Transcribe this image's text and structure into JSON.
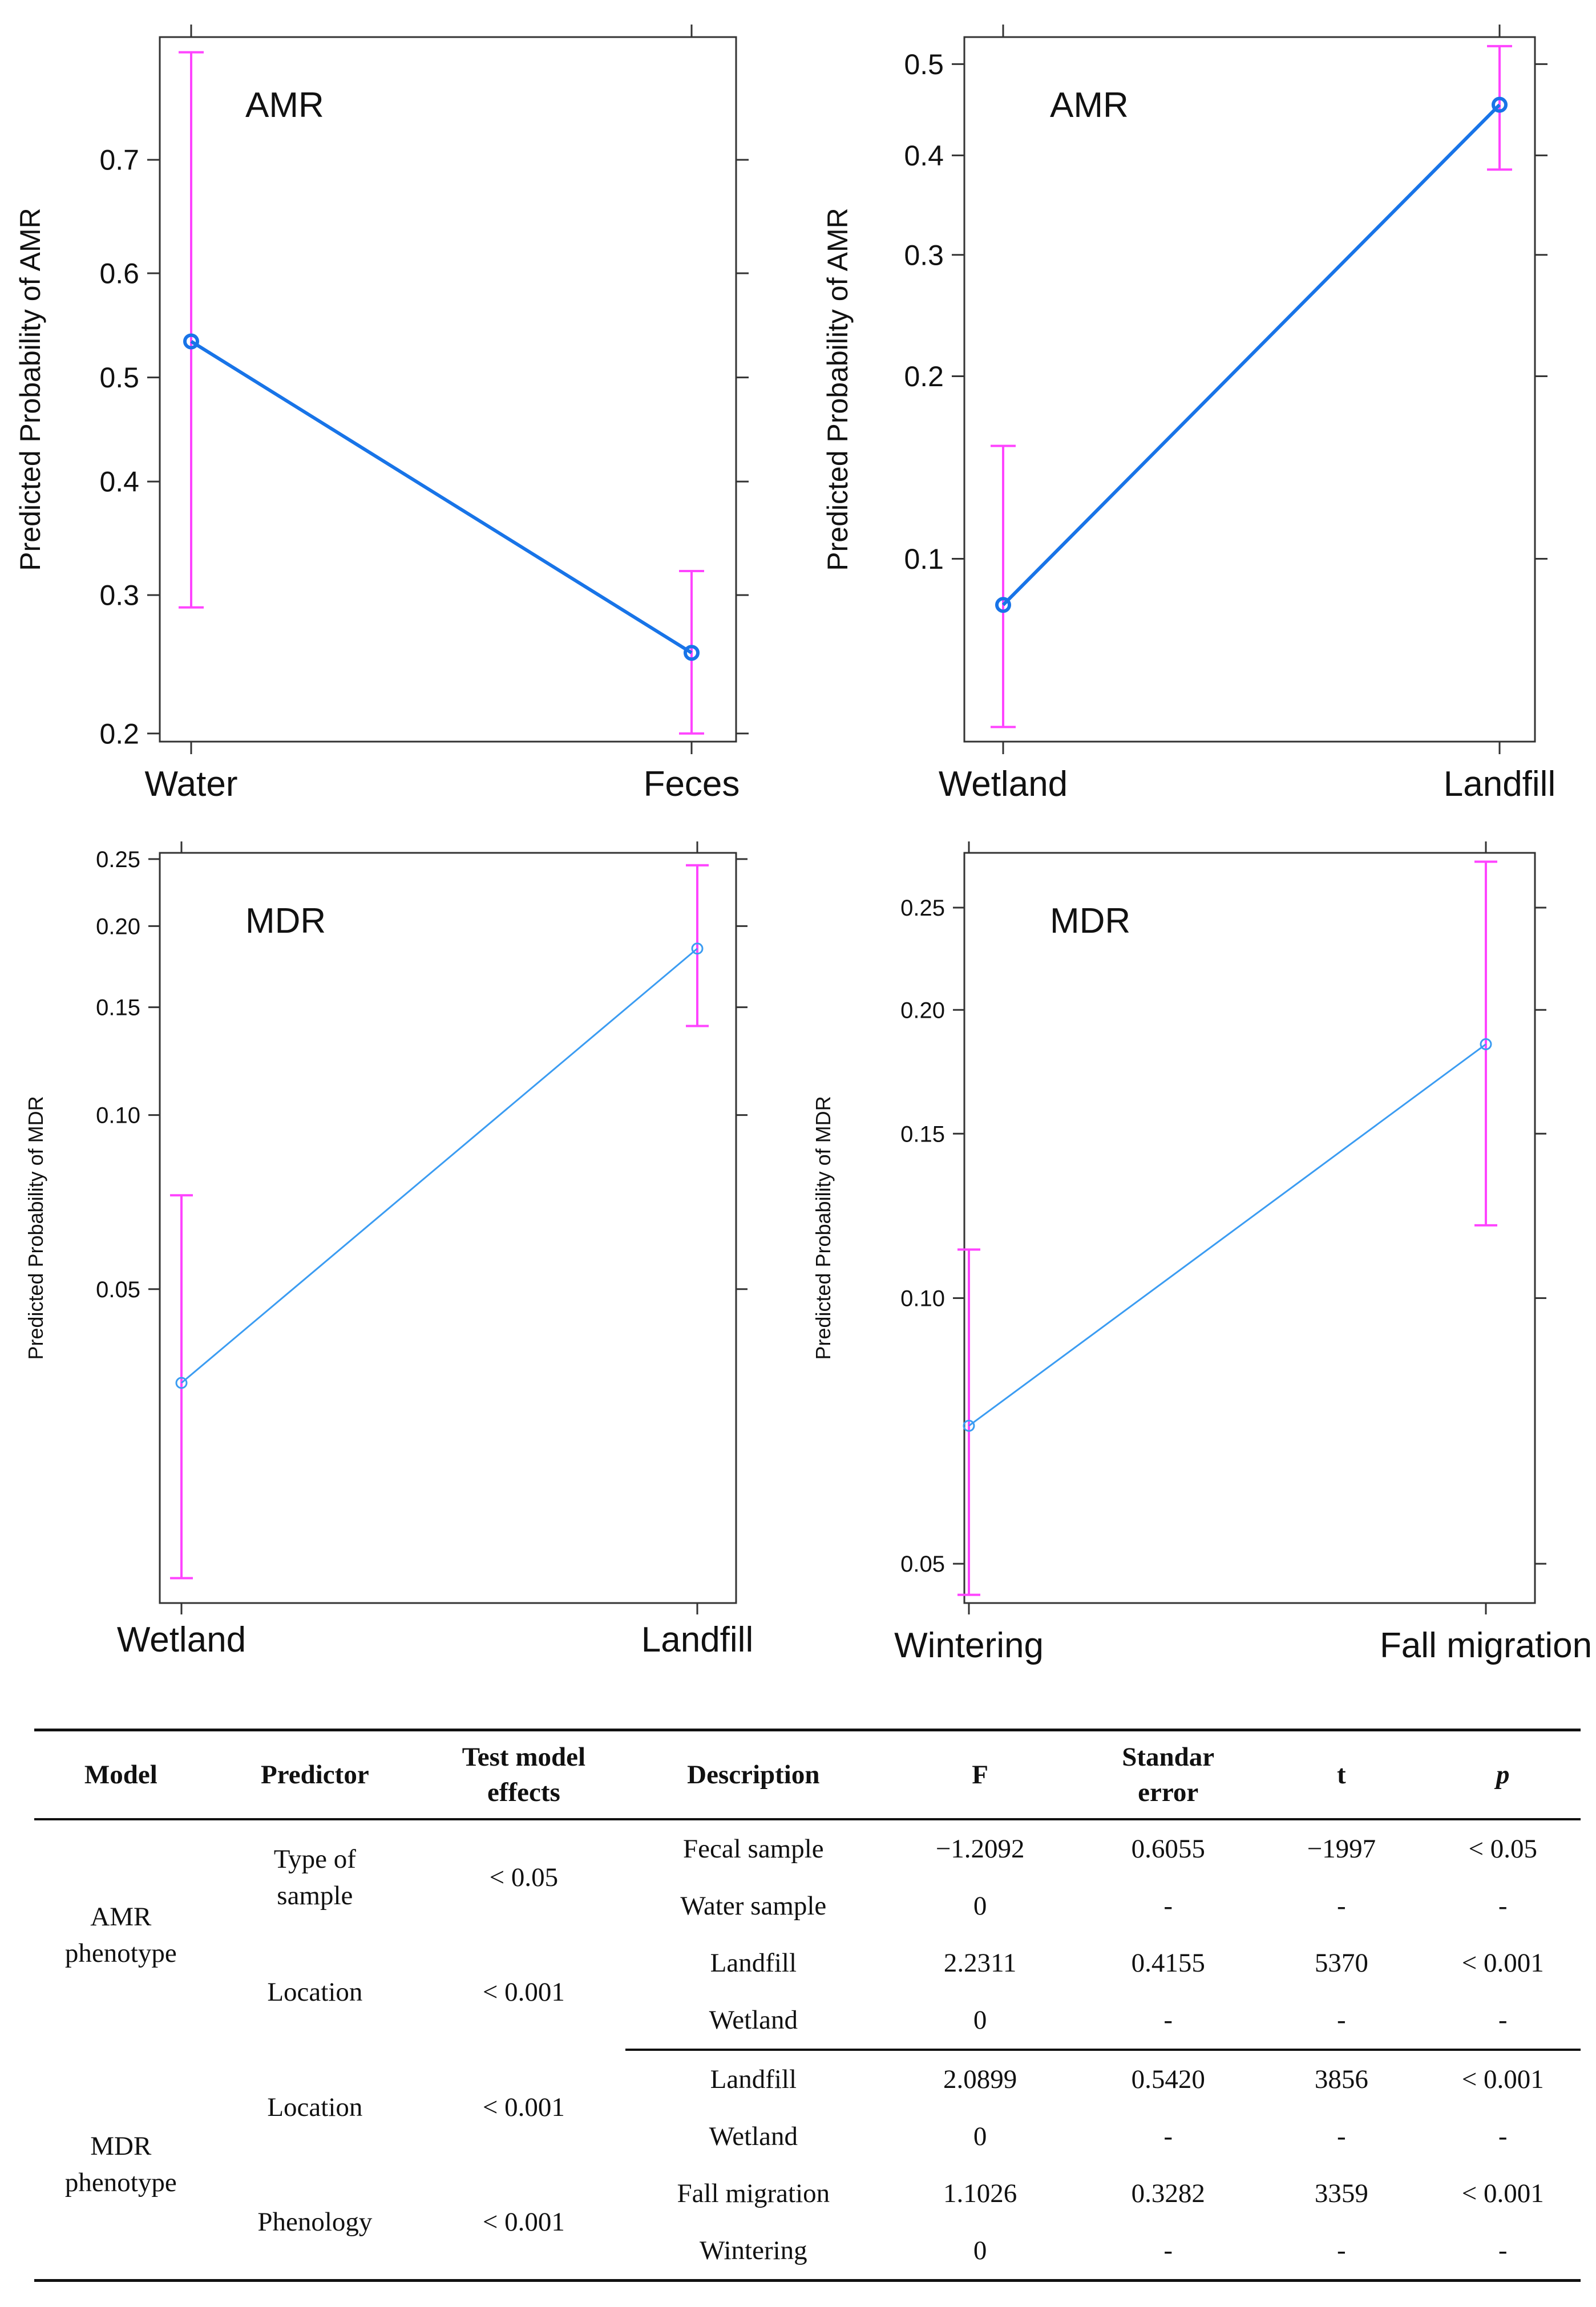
{
  "chart_data": [
    {
      "type": "line",
      "panel_label": "AMR",
      "ylabel": "Predicted Probability of AMR",
      "categories": [
        "Water",
        "Feces"
      ],
      "values": [
        0.535,
        0.255
      ],
      "ci_lower": [
        0.29,
        0.2
      ],
      "ci_upper": [
        0.78,
        0.32
      ],
      "yticks": [
        0.2,
        0.3,
        0.4,
        0.5,
        0.6,
        0.7
      ],
      "ytick_labels": [
        "0.2",
        "0.3",
        "0.4",
        "0.5",
        "0.6",
        "0.7"
      ],
      "yrange": [
        0.195,
        0.79
      ],
      "yscale": "logit",
      "line_color": "#1874e8",
      "ci_color": "#ff44ff"
    },
    {
      "type": "line",
      "panel_label": "AMR",
      "ylabel": "Predicted Probability of AMR",
      "categories": [
        "Wetland",
        "Landfill"
      ],
      "values": [
        0.083,
        0.455
      ],
      "ci_lower": [
        0.05,
        0.385
      ],
      "ci_upper": [
        0.155,
        0.52
      ],
      "yticks": [
        0.1,
        0.2,
        0.3,
        0.4,
        0.5
      ],
      "ytick_labels": [
        "0.1",
        "0.2",
        "0.3",
        "0.4",
        "0.5"
      ],
      "yrange": [
        0.047,
        0.53
      ],
      "yscale": "logit",
      "line_color": "#1874e8",
      "ci_color": "#ff44ff"
    },
    {
      "type": "line",
      "panel_label": "MDR",
      "ylabel": "Predicted Probability of MDR",
      "categories": [
        "Wetland",
        "Landfill"
      ],
      "values": [
        0.034,
        0.185
      ],
      "ci_lower": [
        0.015,
        0.14
      ],
      "ci_upper": [
        0.073,
        0.245
      ],
      "yticks": [
        0.05,
        0.1,
        0.15,
        0.2,
        0.25
      ],
      "ytick_labels": [
        "0.05",
        "0.10",
        "0.15",
        "0.20",
        "0.25"
      ],
      "yrange": [
        0.0135,
        0.255
      ],
      "yscale": "logit",
      "line_color": "#3b9cf2",
      "ci_color": "#ff44ff"
    },
    {
      "type": "line",
      "panel_label": "MDR",
      "ylabel": "Predicted Probability of MDR",
      "categories": [
        "Wintering",
        "Fall migration"
      ],
      "values": [
        0.072,
        0.185
      ],
      "ci_lower": [
        0.046,
        0.12
      ],
      "ci_upper": [
        0.113,
        0.275
      ],
      "yticks": [
        0.05,
        0.1,
        0.15,
        0.2,
        0.25
      ],
      "ytick_labels": [
        "0.05",
        "0.10",
        "0.15",
        "0.20",
        "0.25"
      ],
      "yrange": [
        0.045,
        0.28
      ],
      "yscale": "logit",
      "line_color": "#3b9cf2",
      "ci_color": "#ff44ff"
    }
  ],
  "table": {
    "headers": {
      "model": "Model",
      "predictor": "Predictor",
      "test_line1": "Test model",
      "test_line2": "effects",
      "description": "Description",
      "f": "F",
      "se_line1": "Standar",
      "se_line2": "error",
      "t": "t",
      "p": "p"
    },
    "groups": [
      {
        "model_line1": "AMR",
        "model_line2": "phenotype",
        "predictors": [
          {
            "name_line1": "Type of",
            "name_line2": "sample",
            "test": "< 0.05",
            "rows": [
              {
                "description": "Fecal sample",
                "f": "−1.2092",
                "se": "0.6055",
                "t": "−1997",
                "p": "< 0.05"
              },
              {
                "description": "Water sample",
                "f": "0",
                "se": "-",
                "t": "-",
                "p": "-"
              }
            ]
          },
          {
            "name_line1": "Location",
            "name_line2": "",
            "test": "< 0.001",
            "rows": [
              {
                "description": "Landfill",
                "f": "2.2311",
                "se": "0.4155",
                "t": "5370",
                "p": "< 0.001"
              },
              {
                "description": "Wetland",
                "f": "0",
                "se": "-",
                "t": "-",
                "p": "-"
              }
            ]
          }
        ]
      },
      {
        "model_line1": "MDR",
        "model_line2": "phenotype",
        "predictors": [
          {
            "name_line1": "Location",
            "name_line2": "",
            "test": "< 0.001",
            "rows": [
              {
                "description": "Landfill",
                "f": "2.0899",
                "se": "0.5420",
                "t": "3856",
                "p": "< 0.001"
              },
              {
                "description": "Wetland",
                "f": "0",
                "se": "-",
                "t": "-",
                "p": "-"
              }
            ]
          },
          {
            "name_line1": "Phenology",
            "name_line2": "",
            "test": "< 0.001",
            "rows": [
              {
                "description": "Fall migration",
                "f": "1.1026",
                "se": "0.3282",
                "t": "3359",
                "p": "< 0.001"
              },
              {
                "description": "Wintering",
                "f": "0",
                "se": "-",
                "t": "-",
                "p": "-"
              }
            ]
          }
        ]
      }
    ]
  }
}
